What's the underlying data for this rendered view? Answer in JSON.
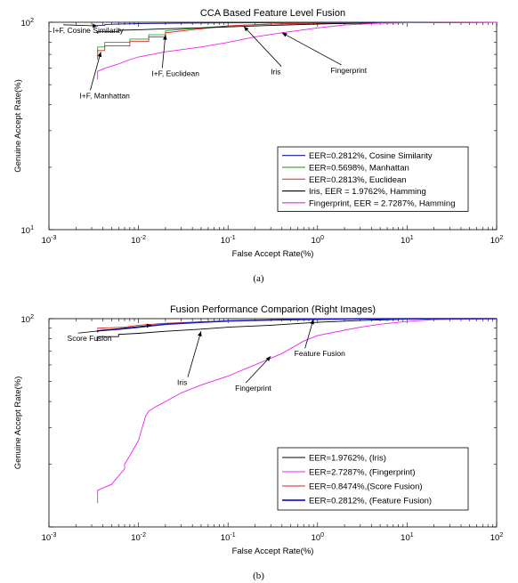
{
  "chart_data": [
    {
      "type": "line",
      "title": "CCA Based Feature Level Fusion",
      "xlabel": "False Accept Rate(%)",
      "ylabel": "Genuine Accept Rate(%)",
      "xscale": "log",
      "yscale": "log",
      "xlim": [
        0.001,
        100
      ],
      "ylim": [
        10,
        100
      ],
      "xticks": [
        {
          "value": 0.001,
          "base": "10",
          "exp": "-3"
        },
        {
          "value": 0.01,
          "base": "10",
          "exp": "-2"
        },
        {
          "value": 0.1,
          "base": "10",
          "exp": "-1"
        },
        {
          "value": 1,
          "base": "10",
          "exp": "0"
        },
        {
          "value": 10,
          "base": "10",
          "exp": "1"
        },
        {
          "value": 100,
          "base": "10",
          "exp": "2"
        }
      ],
      "yticks": [
        {
          "value": 10,
          "base": "10",
          "exp": "1"
        },
        {
          "value": 100,
          "base": "10",
          "exp": "2"
        }
      ],
      "grid": false,
      "legend_position": "bottom-right",
      "caption": "(a)",
      "series": [
        {
          "name": "EER=0.2812%, Cosine Similarity",
          "color": "#1a1a8c",
          "x": [
            0.0035,
            0.0035,
            0.0042,
            0.0042,
            0.006,
            0.01,
            0.03,
            0.1,
            1,
            100
          ],
          "y": [
            95.5,
            96.5,
            96.5,
            97.5,
            98.0,
            98.5,
            99.0,
            99.3,
            99.7,
            100
          ]
        },
        {
          "name": "EER=0.5698%, Manhattan",
          "color": "#22aa22",
          "x": [
            0.0035,
            0.0035,
            0.0042,
            0.0042,
            0.008,
            0.008,
            0.013,
            0.013,
            0.02,
            0.02,
            0.05,
            0.1,
            0.3,
            1,
            100
          ],
          "y": [
            72,
            76,
            76,
            80,
            80,
            83,
            83,
            87,
            87,
            91,
            94,
            96,
            98,
            99,
            100
          ]
        },
        {
          "name": "EER=0.2813%, Euclidean",
          "color": "#dd2222",
          "x": [
            0.0035,
            0.0035,
            0.0042,
            0.0042,
            0.008,
            0.008,
            0.013,
            0.013,
            0.02,
            0.02,
            0.05,
            0.1,
            0.3,
            1,
            100
          ],
          "y": [
            66,
            73,
            73,
            77,
            77,
            81,
            81,
            85,
            85,
            89,
            93,
            96,
            98,
            99,
            100
          ]
        },
        {
          "name": "Iris, EER = 1.9762%, Hamming",
          "color": "#000000",
          "x": [
            0.0035,
            0.0035,
            0.006,
            0.006,
            0.01,
            0.02,
            0.05,
            0.1,
            0.3,
            1,
            3,
            10,
            100
          ],
          "y": [
            88,
            90,
            90,
            91.5,
            92,
            93,
            94,
            95,
            96.5,
            98,
            99,
            99.5,
            100
          ]
        },
        {
          "name": "Fingerprint, EER = 2.7287%, Hamming",
          "color": "#ee22ee",
          "x": [
            0.0035,
            0.0035,
            0.0042,
            0.006,
            0.008,
            0.01,
            0.02,
            0.05,
            0.1,
            0.2,
            0.4,
            1,
            2,
            5,
            10,
            100
          ],
          "y": [
            53,
            58,
            60,
            63,
            66,
            68,
            72,
            76,
            80,
            85,
            89,
            94,
            97,
            99,
            99.5,
            100
          ]
        }
      ],
      "annotations": [
        {
          "text": "I+F, Cosine Similarity",
          "label_x": 0.0011,
          "label_y": 89,
          "arrow_x": 0.0035,
          "arrow_y": 96
        },
        {
          "text": "I+F, Euclidean",
          "label_x": 0.014,
          "label_y": 55,
          "arrow_x": 0.02,
          "arrow_y": 87
        },
        {
          "text": "Iris",
          "label_x": 0.3,
          "label_y": 56,
          "arrow_x": 0.15,
          "arrow_y": 95.5
        },
        {
          "text": "Fingerprint",
          "label_x": 1.4,
          "label_y": 57,
          "arrow_x": 0.4,
          "arrow_y": 89
        },
        {
          "text": "I+F, Manhattan",
          "label_x": 0.0022,
          "label_y": 43,
          "arrow_x": 0.0038,
          "arrow_y": 72
        }
      ]
    },
    {
      "type": "line",
      "title": "Fusion  Performance Comparion (Right Images)",
      "xlabel": "False Accept Rate(%)",
      "ylabel": "Genuine Accept Rate(%)",
      "xscale": "log",
      "yscale": "log",
      "xlim": [
        0.001,
        100
      ],
      "ylim": [
        10,
        100
      ],
      "xticks": [
        {
          "value": 0.001,
          "base": "10",
          "exp": "-3"
        },
        {
          "value": 0.01,
          "base": "10",
          "exp": "-2"
        },
        {
          "value": 0.1,
          "base": "10",
          "exp": "-1"
        },
        {
          "value": 1,
          "base": "10",
          "exp": "0"
        },
        {
          "value": 10,
          "base": "10",
          "exp": "1"
        },
        {
          "value": 100,
          "base": "10",
          "exp": "2"
        }
      ],
      "yticks": [
        {
          "value": 100,
          "base": "10",
          "exp": "2"
        }
      ],
      "grid": false,
      "legend_position": "bottom-right",
      "caption": "(b)",
      "series": [
        {
          "name": "EER=1.9762%, (Iris)",
          "color": "#000000",
          "x": [
            0.0035,
            0.0035,
            0.006,
            0.006,
            0.01,
            0.02,
            0.05,
            0.1,
            0.3,
            1,
            3,
            10,
            100
          ],
          "y": [
            78,
            82,
            82,
            84,
            85,
            87,
            89,
            91,
            93,
            96,
            98,
            99.5,
            100
          ]
        },
        {
          "name": "EER=2.7287%, (Fingerprint)",
          "color": "#ee22ee",
          "x": [
            0.0035,
            0.0035,
            0.005,
            0.007,
            0.007,
            0.008,
            0.01,
            0.011,
            0.012,
            0.013,
            0.016,
            0.02,
            0.03,
            0.05,
            0.1,
            0.2,
            0.4,
            0.7,
            1,
            2,
            3,
            5,
            10,
            20,
            100
          ],
          "y": [
            13,
            15,
            16,
            19,
            20,
            22,
            26,
            30,
            34,
            36,
            38,
            40,
            44,
            48,
            53,
            60,
            68,
            78,
            83,
            88,
            91,
            94,
            97,
            99,
            100
          ]
        },
        {
          "name": "EER=0.8474%,(Score Fusion)",
          "color": "#dd2222",
          "x": [
            0.0035,
            0.0035,
            0.007,
            0.01,
            0.02,
            0.05,
            0.1,
            0.3,
            1,
            10,
            100
          ],
          "y": [
            89,
            90,
            91,
            93,
            95,
            96.5,
            97.5,
            98.5,
            99.3,
            99.8,
            100
          ]
        },
        {
          "name": "EER=0.2812%, (Feature Fusion)",
          "color": "#1a1acc",
          "x": [
            0.0035,
            0.0035,
            0.006,
            0.01,
            0.02,
            0.05,
            0.1,
            0.3,
            1,
            3,
            100
          ],
          "y": [
            86,
            87.5,
            89,
            91,
            94,
            96,
            97.5,
            98.5,
            99.3,
            99.8,
            100
          ]
        }
      ],
      "annotations": [
        {
          "text": "Score Fusion",
          "label_x": 0.0016,
          "label_y": 78,
          "arrow_x": 0.014,
          "arrow_y": 93
        },
        {
          "text": "Iris",
          "label_x": 0.027,
          "label_y": 48,
          "arrow_x": 0.05,
          "arrow_y": 87
        },
        {
          "text": "Fingerprint",
          "label_x": 0.12,
          "label_y": 45,
          "arrow_x": 0.3,
          "arrow_y": 66
        },
        {
          "text": "Feature Fusion",
          "label_x": 0.55,
          "label_y": 66,
          "arrow_x": 0.9,
          "arrow_y": 99.5
        }
      ]
    }
  ]
}
